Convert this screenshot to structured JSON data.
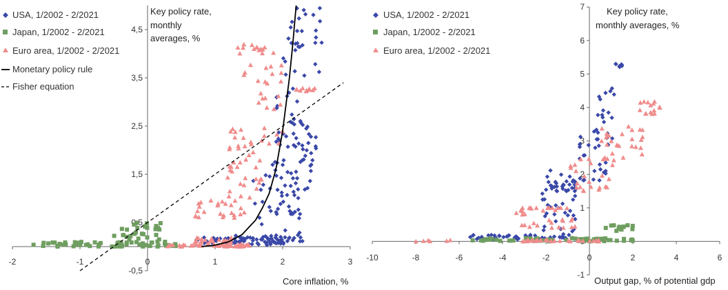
{
  "colors": {
    "usa": "#3a48a8",
    "japan": "#6f9e60",
    "euro": "#f08c8c",
    "rule": "#000000",
    "fisher": "#000000",
    "axis": "#666666"
  },
  "chart_data": [
    {
      "type": "scatter",
      "xlabel": "Core inflation, %",
      "ylabel": "Key policy rate, monthly averages, %",
      "ylabel_lines": [
        "Key policy rate,",
        "monthly",
        "averages, %"
      ],
      "xlim": [
        -2,
        3
      ],
      "ylim": [
        -0.5,
        5
      ],
      "x_ticks": [
        "-2",
        "-1",
        "0",
        "1",
        "2",
        "3"
      ],
      "y_ticks": [
        "-0,5",
        "0,5",
        "1,5",
        "2,5",
        "3,5",
        "4,5"
      ],
      "legend_position": "top-left",
      "series": [
        {
          "name": "USA, 1/2002 - 2/2021",
          "marker": "diamond",
          "clusters": [
            {
              "x": [
                0.7,
                2.3
              ],
              "y": [
                0.03,
                0.2
              ],
              "n": 60
            },
            {
              "x": [
                1.15,
                2.3
              ],
              "y": [
                0.05,
                0.25
              ],
              "n": 25
            },
            {
              "x": [
                1.5,
                2.2
              ],
              "y": [
                0.3,
                1.5
              ],
              "n": 20
            },
            {
              "x": [
                1.8,
                2.1
              ],
              "y": [
                0.8,
                1.8
              ],
              "n": 15
            },
            {
              "x": [
                2.05,
                2.3
              ],
              "y": [
                0.1,
                0.8
              ],
              "n": 10
            },
            {
              "x": [
                2.1,
                2.5
              ],
              "y": [
                1.0,
                2.6
              ],
              "n": 35
            },
            {
              "x": [
                1.9,
                2.3
              ],
              "y": [
                2.0,
                3.3
              ],
              "n": 25
            },
            {
              "x": [
                2.0,
                2.6
              ],
              "y": [
                3.5,
                5.0
              ],
              "n": 30
            }
          ]
        },
        {
          "name": "Japan, 1/2002 - 2/2021",
          "marker": "square",
          "clusters": [
            {
              "x": [
                -1.7,
                0.5
              ],
              "y": [
                0.0,
                0.1
              ],
              "n": 60
            },
            {
              "x": [
                -0.5,
                0.2
              ],
              "y": [
                0.1,
                0.5
              ],
              "n": 30
            }
          ]
        },
        {
          "name": "Euro area, 1/2002 - 2/2021",
          "marker": "triangle",
          "clusters": [
            {
              "x": [
                0.2,
                1.5
              ],
              "y": [
                0.0,
                0.05
              ],
              "n": 40
            },
            {
              "x": [
                0.7,
                1.6
              ],
              "y": [
                0.0,
                0.2
              ],
              "n": 30
            },
            {
              "x": [
                0.7,
                1.5
              ],
              "y": [
                0.6,
                1.0
              ],
              "n": 25
            },
            {
              "x": [
                1.1,
                1.7
              ],
              "y": [
                1.0,
                2.0
              ],
              "n": 25
            },
            {
              "x": [
                1.2,
                2.0
              ],
              "y": [
                2.0,
                2.5
              ],
              "n": 20
            },
            {
              "x": [
                1.4,
                2.0
              ],
              "y": [
                2.8,
                3.8
              ],
              "n": 20
            },
            {
              "x": [
                1.3,
                1.9
              ],
              "y": [
                4.0,
                4.2
              ],
              "n": 15
            },
            {
              "x": [
                2.2,
                2.5
              ],
              "y": [
                3.2,
                3.3
              ],
              "n": 10
            }
          ]
        },
        {
          "name": "Monetary policy rule",
          "style": "solid-line",
          "x": [
            0.8,
            1.0,
            1.2,
            1.4,
            1.6,
            1.7,
            1.8,
            1.9,
            2.0,
            2.1,
            2.15,
            2.2
          ],
          "y": [
            0.0,
            0.03,
            0.1,
            0.25,
            0.55,
            0.8,
            1.1,
            1.6,
            2.4,
            3.5,
            4.2,
            5.0
          ]
        },
        {
          "name": "Fisher equation",
          "style": "dashed-line",
          "x": [
            -1.0,
            2.9
          ],
          "y": [
            -0.5,
            3.4
          ]
        }
      ]
    },
    {
      "type": "scatter",
      "xlabel": "Output gap, % of potential gdp",
      "ylabel": "Key policy rate, monthly averages, %",
      "ylabel_lines": [
        "Key policy rate,",
        "monthly averages, %"
      ],
      "xlim": [
        -10,
        6
      ],
      "ylim": [
        -1,
        7
      ],
      "x_ticks": [
        "-10",
        "-8",
        "-6",
        "-4",
        "-2",
        "0",
        "2",
        "4",
        "6"
      ],
      "y_ticks": [
        "-1",
        "0",
        "1",
        "2",
        "3",
        "4",
        "5",
        "6",
        "7"
      ],
      "legend_position": "top-left",
      "series": [
        {
          "name": "USA, 1/2002 - 2/2021",
          "marker": "diamond",
          "clusters": [
            {
              "x": [
                -5.5,
                -0.8
              ],
              "y": [
                0.05,
                0.2
              ],
              "n": 50
            },
            {
              "x": [
                -2.2,
                -0.6
              ],
              "y": [
                0.2,
                2.2
              ],
              "n": 40
            },
            {
              "x": [
                -2.0,
                -0.5
              ],
              "y": [
                1.5,
                1.8
              ],
              "n": 20
            },
            {
              "x": [
                -0.5,
                1.0
              ],
              "y": [
                1.8,
                3.2
              ],
              "n": 25
            },
            {
              "x": [
                0.2,
                1.2
              ],
              "y": [
                3.0,
                4.6
              ],
              "n": 20
            },
            {
              "x": [
                1.1,
                1.5
              ],
              "y": [
                5.2,
                5.3
              ],
              "n": 8
            }
          ]
        },
        {
          "name": "Japan, 1/2002 - 2/2021",
          "marker": "square",
          "clusters": [
            {
              "x": [
                -5.5,
                2.0
              ],
              "y": [
                0.0,
                0.1
              ],
              "n": 60
            },
            {
              "x": [
                0.6,
                2.0
              ],
              "y": [
                0.3,
                0.5
              ],
              "n": 15
            }
          ]
        },
        {
          "name": "Euro area, 1/2002 - 2/2021",
          "marker": "triangle",
          "clusters": [
            {
              "x": [
                -8.0,
                -6.0
              ],
              "y": [
                0.0,
                0.05
              ],
              "n": 6
            },
            {
              "x": [
                -3.5,
                0.5
              ],
              "y": [
                0.0,
                0.05
              ],
              "n": 30
            },
            {
              "x": [
                -3.5,
                -0.5
              ],
              "y": [
                0.4,
                1.0
              ],
              "n": 25
            },
            {
              "x": [
                -3.5,
                -1.0
              ],
              "y": [
                1.0,
                1.0
              ],
              "n": 10
            },
            {
              "x": [
                -1.0,
                1.2
              ],
              "y": [
                1.5,
                2.5
              ],
              "n": 25
            },
            {
              "x": [
                0.5,
                2.5
              ],
              "y": [
                2.5,
                3.5
              ],
              "n": 25
            },
            {
              "x": [
                2.2,
                3.3
              ],
              "y": [
                3.8,
                4.2
              ],
              "n": 15
            }
          ]
        }
      ]
    }
  ]
}
